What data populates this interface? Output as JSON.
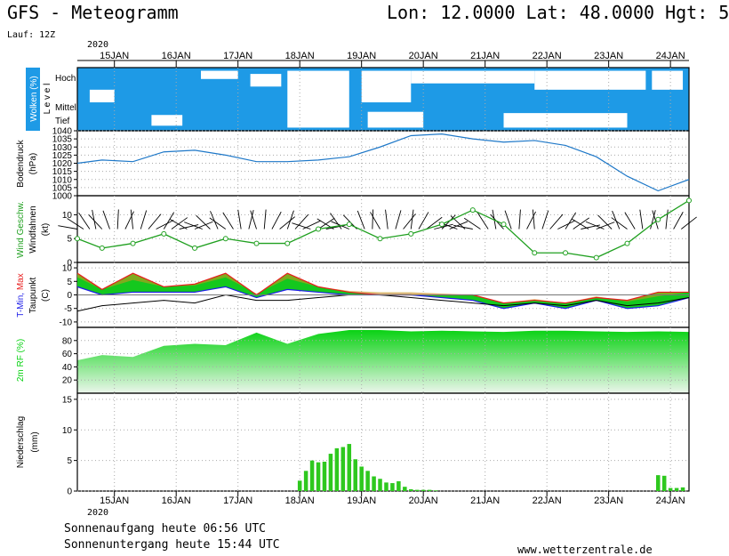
{
  "header": {
    "model_title": "GFS - Meteogramm",
    "location": "Lon: 12.0000 Lat: 48.0000 Hgt: 5",
    "run": "Lauf: 12Z",
    "year": "2020"
  },
  "time_axis": {
    "dates": [
      "15JAN",
      "16JAN",
      "17JAN",
      "18JAN",
      "19JAN",
      "20JAN",
      "21JAN",
      "22JAN",
      "23JAN",
      "24JAN"
    ],
    "year_label": "2020"
  },
  "panels": {
    "clouds": {
      "title": "Wolken (%)",
      "axis": "L e v e l",
      "levels": [
        "Hoch",
        "Mittel",
        "Tief"
      ]
    },
    "pressure": {
      "title": "Bodendruck",
      "unit": "(hPa)"
    },
    "wind": {
      "title": "Wind Geschw.",
      "sub": "Windfahnen",
      "unit": "(kt)"
    },
    "temperature": {
      "title_min": "T-Min,",
      "title_max": "Max",
      "sub": "Taupunkt",
      "unit": "(C)"
    },
    "humidity": {
      "title": "2m RF (%)"
    },
    "precip": {
      "title": "Niederschlag",
      "unit": "(mm)"
    }
  },
  "footer": {
    "sunrise": "Sonnenaufgang heute 06:56 UTC",
    "sunset": "Sonnenuntergang heute 15:44 UTC",
    "site": "www.wetterzentrale.de"
  },
  "colors": {
    "cloud": "#1e9ae6",
    "pressure": "#1e78c8",
    "wind": "#20a020",
    "tmax": "#e81c1c",
    "tmin": "#1c1ce8",
    "tmax_fill": "#c8961e",
    "tmin_fill": "#14c81e",
    "dew_fill": "#14b4a0",
    "rh": "#0ad214",
    "precip": "#2ec81e"
  },
  "chart_data": [
    {
      "type": "area",
      "name": "cloud cover",
      "levels": [
        "Hoch",
        "Mittel",
        "Tief"
      ],
      "note": "cloud cover by level shown as filled blue bands"
    },
    {
      "type": "line",
      "ylabel": "Bodendruck (hPa)",
      "ylim": [
        1000,
        1040
      ],
      "yticks": [
        1000,
        1005,
        1010,
        1015,
        1020,
        1025,
        1030,
        1035,
        1040
      ],
      "x": [
        14.6,
        15.0,
        15.5,
        16.0,
        16.5,
        17.0,
        17.5,
        18.0,
        18.5,
        19.0,
        19.5,
        20.0,
        20.5,
        21.0,
        21.5,
        22.0,
        22.5,
        23.0,
        23.5,
        24.0,
        24.5
      ],
      "values": [
        1020,
        1022,
        1021,
        1027,
        1028,
        1025,
        1021,
        1021,
        1022,
        1024,
        1030,
        1037,
        1038,
        1035,
        1033,
        1034,
        1031,
        1024,
        1012,
        1003,
        1010
      ]
    },
    {
      "type": "line",
      "ylabel": "Wind Geschw. (kt)",
      "ylim": [
        0,
        14
      ],
      "yticks": [
        0,
        5,
        10
      ],
      "x": [
        14.6,
        15.0,
        15.5,
        16.0,
        16.5,
        17.0,
        17.5,
        18.0,
        18.5,
        19.0,
        19.5,
        20.0,
        20.5,
        21.0,
        21.5,
        22.0,
        22.5,
        23.0,
        23.5,
        24.0,
        24.5
      ],
      "values": [
        5,
        3,
        4,
        6,
        3,
        5,
        4,
        4,
        7,
        8,
        5,
        6,
        8,
        11,
        8,
        2,
        2,
        1,
        4,
        9,
        13
      ]
    },
    {
      "type": "area",
      "ylabel": "T-Min, Max (C)",
      "ylim": [
        -12,
        12
      ],
      "yticks": [
        -10,
        -5,
        0,
        5,
        10
      ],
      "x": [
        14.6,
        15.0,
        15.5,
        16.0,
        16.5,
        17.0,
        17.5,
        18.0,
        18.5,
        19.0,
        19.5,
        20.0,
        20.5,
        21.0,
        21.5,
        22.0,
        22.5,
        23.0,
        23.5,
        24.0,
        24.5
      ],
      "series": [
        {
          "name": "Max",
          "values": [
            8,
            2,
            8,
            3,
            4,
            8,
            0,
            8,
            3,
            1,
            0,
            0,
            0,
            0,
            -3,
            -2,
            -3,
            -1,
            -2,
            1,
            1
          ]
        },
        {
          "name": "Min",
          "values": [
            3,
            0,
            1,
            1,
            1,
            3,
            -1,
            2,
            1,
            0,
            0,
            0,
            -1,
            -2,
            -5,
            -3,
            -5,
            -2,
            -5,
            -4,
            -1
          ]
        },
        {
          "name": "Taupunkt",
          "values": [
            -6,
            -4,
            -3,
            -2,
            -3,
            0,
            -2,
            -2,
            -1,
            0,
            0,
            -1,
            -2,
            -3,
            -4,
            -3,
            -4,
            -2,
            -4,
            -3,
            -1
          ]
        }
      ]
    },
    {
      "type": "area",
      "ylabel": "2m RF (%)",
      "ylim": [
        0,
        100
      ],
      "yticks": [
        20,
        40,
        60,
        80
      ],
      "x": [
        14.6,
        15.0,
        15.5,
        16.0,
        16.5,
        17.0,
        17.5,
        18.0,
        18.5,
        19.0,
        19.5,
        20.0,
        20.5,
        21.0,
        21.5,
        22.0,
        22.5,
        23.0,
        23.5,
        24.0,
        24.5
      ],
      "values": [
        50,
        58,
        55,
        72,
        75,
        73,
        92,
        75,
        90,
        96,
        96,
        94,
        95,
        94,
        93,
        95,
        95,
        94,
        93,
        94,
        93
      ]
    },
    {
      "type": "bar",
      "ylabel": "Niederschlag (mm)",
      "ylim": [
        0,
        16
      ],
      "yticks": [
        0,
        5,
        10,
        15
      ],
      "x": [
        18.2,
        18.3,
        18.4,
        18.5,
        18.6,
        18.7,
        18.8,
        18.9,
        19.0,
        19.1,
        19.2,
        19.3,
        19.4,
        19.5,
        19.6,
        19.7,
        19.8,
        19.9,
        20.0,
        20.1,
        20.2,
        20.3,
        20.4,
        24.0,
        24.1,
        24.2,
        24.3,
        24.4
      ],
      "values": [
        1.7,
        3.3,
        5.0,
        4.7,
        4.8,
        6.1,
        7.0,
        7.2,
        7.7,
        5.2,
        4.0,
        3.3,
        2.4,
        2.0,
        1.4,
        1.3,
        1.6,
        0.7,
        0.3,
        0.2,
        0.2,
        0.2,
        0.1,
        2.6,
        2.5,
        0.5,
        0.5,
        0.6
      ]
    }
  ]
}
